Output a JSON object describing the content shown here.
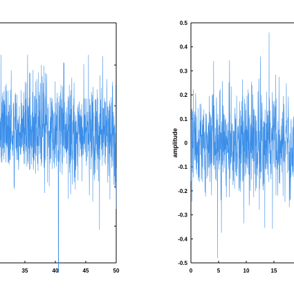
{
  "chart_data": [
    {
      "type": "line",
      "title": "",
      "xlabel": "",
      "ylabel": "",
      "x_ticks": [
        35,
        40,
        45,
        50
      ],
      "xlim_visible": [
        30.2,
        50
      ],
      "grid": false,
      "line_color": "#3b8ee8",
      "series": [
        {
          "signal": "random noise",
          "visible_x_range": [
            30.2,
            50
          ],
          "approx_y_center_fraction": 0.45,
          "notable_minimum_x": 40.5
        }
      ]
    },
    {
      "type": "line",
      "title": "",
      "xlabel": "",
      "ylabel": "amplitude",
      "x_ticks": [
        0,
        5,
        10,
        15
      ],
      "y_ticks": [
        0.5,
        0.4,
        0.3,
        0.2,
        0.1,
        0,
        -0.1,
        -0.2,
        -0.3,
        -0.4,
        -0.5
      ],
      "y_tick_labels": [
        "0.5",
        "0.4",
        "0.3",
        "0.2",
        "0.1",
        "0",
        "-0.1",
        "-0.2",
        "-0.3",
        "-0.4",
        "-0.5"
      ],
      "ylim": [
        -0.5,
        0.5
      ],
      "xlim_visible": [
        0,
        18
      ],
      "grid": false,
      "line_color": "#3b8ee8",
      "series": [
        {
          "signal": "random noise",
          "visible_x_range": [
            0,
            18
          ],
          "min_value": -0.48,
          "max_value": 0.46
        }
      ]
    }
  ]
}
